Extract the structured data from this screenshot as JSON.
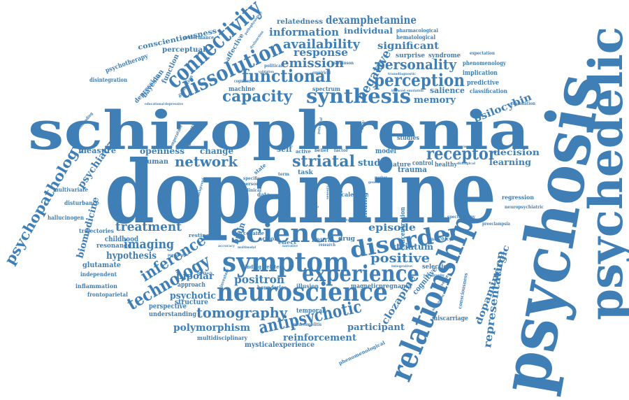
{
  "colors": {
    "primary": "#3f7fb6",
    "background": "#ffffff"
  },
  "words": [
    {
      "text": "dopamine",
      "weight": 100
    },
    {
      "text": "schizophrenia",
      "weight": 75
    },
    {
      "text": "psychosis",
      "weight": 88
    },
    {
      "text": "psychedelic",
      "weight": 60
    },
    {
      "text": "relationship",
      "weight": 42
    },
    {
      "text": "neuroscience",
      "weight": 34
    },
    {
      "text": "symptom",
      "weight": 36
    },
    {
      "text": "science",
      "weight": 32
    },
    {
      "text": "experience",
      "weight": 30
    },
    {
      "text": "disorder",
      "weight": 30
    },
    {
      "text": "connectivity",
      "weight": 30
    },
    {
      "text": "dissolution",
      "weight": 28
    },
    {
      "text": "synthesis",
      "weight": 26
    },
    {
      "text": "functional",
      "weight": 24
    },
    {
      "text": "perception",
      "weight": 24
    },
    {
      "text": "tomography",
      "weight": 22
    },
    {
      "text": "antipsychotic",
      "weight": 24
    },
    {
      "text": "technology",
      "weight": 22
    },
    {
      "text": "inference",
      "weight": 20
    },
    {
      "text": "network",
      "weight": 20
    },
    {
      "text": "striatal",
      "weight": 20
    },
    {
      "text": "receptor",
      "weight": 20
    },
    {
      "text": "capacity",
      "weight": 20
    },
    {
      "text": "personality",
      "weight": 18
    },
    {
      "text": "availability",
      "weight": 18
    },
    {
      "text": "emission",
      "weight": 18
    },
    {
      "text": "treatment",
      "weight": 18
    },
    {
      "text": "positron",
      "weight": 16
    },
    {
      "text": "positive",
      "weight": 16
    },
    {
      "text": "imaging",
      "weight": 16
    },
    {
      "text": "negative",
      "weight": 16
    },
    {
      "text": "psychopathology",
      "weight": 18
    },
    {
      "text": "dexamphetamine",
      "weight": 14
    },
    {
      "text": "information",
      "weight": 14
    },
    {
      "text": "response",
      "weight": 14
    },
    {
      "text": "significant",
      "weight": 13
    },
    {
      "text": "representation",
      "weight": 14
    },
    {
      "text": "dopaminergic",
      "weight": 13
    },
    {
      "text": "polymorphism",
      "weight": 13
    },
    {
      "text": "reinforcement",
      "weight": 12
    },
    {
      "text": "participant",
      "weight": 12
    },
    {
      "text": "psilocybin",
      "weight": 13
    },
    {
      "text": "episode",
      "weight": 13
    },
    {
      "text": "memory",
      "weight": 12
    },
    {
      "text": "psychiatry",
      "weight": 13
    },
    {
      "text": "hypothesis",
      "weight": 13
    },
    {
      "text": "biomedicine",
      "weight": 12
    },
    {
      "text": "bipolar",
      "weight": 12
    },
    {
      "text": "psychotic",
      "weight": 12
    },
    {
      "text": "openness",
      "weight": 11
    },
    {
      "text": "decision",
      "weight": 11
    },
    {
      "text": "learning",
      "weight": 11
    },
    {
      "text": "clozapine",
      "weight": 12
    },
    {
      "text": "study",
      "weight": 12
    },
    {
      "text": "striatum",
      "weight": 11
    },
    {
      "text": "salience",
      "weight": 10
    },
    {
      "text": "change",
      "weight": 11
    },
    {
      "text": "measure",
      "weight": 11
    },
    {
      "text": "individual",
      "weight": 10
    },
    {
      "text": "relatedness",
      "weight": 9
    },
    {
      "text": "conscientiousness",
      "weight": 9
    },
    {
      "text": "perceptual",
      "weight": 9
    },
    {
      "text": "function",
      "weight": 9
    },
    {
      "text": "bayesian",
      "weight": 9
    },
    {
      "text": "depression",
      "weight": 8
    },
    {
      "text": "affective",
      "weight": 8
    },
    {
      "text": "surprise",
      "weight": 8
    },
    {
      "text": "syndrome",
      "weight": 8
    },
    {
      "text": "implication",
      "weight": 8
    },
    {
      "text": "predictive",
      "weight": 8
    },
    {
      "text": "phenomenology",
      "weight": 7
    },
    {
      "text": "classification",
      "weight": 7
    },
    {
      "text": "hematological",
      "weight": 7
    },
    {
      "text": "pharmacological",
      "weight": 7
    },
    {
      "text": "machine",
      "weight": 8
    },
    {
      "text": "spectrum",
      "weight": 7
    },
    {
      "text": "glutamate",
      "weight": 9
    },
    {
      "text": "childhood",
      "weight": 9
    },
    {
      "text": "resonance",
      "weight": 8
    },
    {
      "text": "trajectories",
      "weight": 7
    },
    {
      "text": "independent",
      "weight": 7
    },
    {
      "text": "inflammation",
      "weight": 7
    },
    {
      "text": "frontoparietal",
      "weight": 7
    },
    {
      "text": "perspective",
      "weight": 9
    },
    {
      "text": "structure",
      "weight": 9
    },
    {
      "text": "understanding",
      "weight": 8
    },
    {
      "text": "approach",
      "weight": 8
    },
    {
      "text": "multidisciplinary",
      "weight": 7
    },
    {
      "text": "mysticalexperience",
      "weight": 9
    },
    {
      "text": "temporal",
      "weight": 8
    },
    {
      "text": "boundaries",
      "weight": 7
    },
    {
      "text": "illusion",
      "weight": 7
    },
    {
      "text": "magnetic",
      "weight": 8
    },
    {
      "text": "pregnancy",
      "weight": 8
    },
    {
      "text": "cognitive",
      "weight": 10
    },
    {
      "text": "trauma",
      "weight": 10
    },
    {
      "text": "selection",
      "weight": 8
    },
    {
      "text": "concentration",
      "weight": 8
    },
    {
      "text": "finding",
      "weight": 8
    },
    {
      "text": "patient",
      "weight": 8
    },
    {
      "text": "neural",
      "weight": 9
    },
    {
      "text": "drug",
      "weight": 8
    },
    {
      "text": "action",
      "weight": 7
    },
    {
      "text": "effect",
      "weight": 7
    },
    {
      "text": "cocaine",
      "weight": 7
    },
    {
      "text": "resting",
      "weight": 7
    },
    {
      "text": "brain",
      "weight": 10
    },
    {
      "text": "human",
      "weight": 9
    },
    {
      "text": "model",
      "weight": 8
    },
    {
      "text": "control",
      "weight": 8
    },
    {
      "text": "nature",
      "weight": 8
    },
    {
      "text": "healthy",
      "weight": 8
    },
    {
      "text": "task",
      "weight": 8
    },
    {
      "text": "self",
      "weight": 9
    },
    {
      "text": "active",
      "weight": 7
    },
    {
      "text": "studies",
      "weight": 8
    },
    {
      "text": "theory",
      "weight": 8
    },
    {
      "text": "cortical",
      "weight": 7
    },
    {
      "text": "empirical",
      "weight": 6
    },
    {
      "text": "parkinson",
      "weight": 6
    },
    {
      "text": "cognition",
      "weight": 6
    },
    {
      "text": "validation",
      "weight": 6
    },
    {
      "text": "political",
      "weight": 6
    },
    {
      "text": "disintegration",
      "weight": 7
    },
    {
      "text": "psychotherapy",
      "weight": 7
    },
    {
      "text": "performance",
      "weight": 6
    },
    {
      "text": "distinction",
      "weight": 6
    },
    {
      "text": "temperature",
      "weight": 6
    },
    {
      "text": "variability",
      "weight": 6
    },
    {
      "text": "mindreading",
      "weight": 6
    },
    {
      "text": "multivariate",
      "weight": 7
    },
    {
      "text": "disturbance",
      "weight": 7
    },
    {
      "text": "hallucinogen",
      "weight": 7
    },
    {
      "text": "regression",
      "weight": 7
    },
    {
      "text": "neuropsychiatric",
      "weight": 6
    },
    {
      "text": "spectroscopy",
      "weight": 6
    },
    {
      "text": "preeclampsia",
      "weight": 6
    },
    {
      "text": "ncr704cys",
      "weight": 6
    },
    {
      "text": "integrative",
      "weight": 6
    },
    {
      "text": "miscarriage",
      "weight": 8
    },
    {
      "text": "consciousness",
      "weight": 7
    },
    {
      "text": "phenomenological",
      "weight": 7
    },
    {
      "text": "neuromyelitis",
      "weight": 6
    },
    {
      "text": "research",
      "weight": 6
    },
    {
      "text": "accuracy",
      "weight": 6
    },
    {
      "text": "binding",
      "weight": 7
    },
    {
      "text": "related",
      "weight": 7
    },
    {
      "text": "narrative",
      "weight": 6
    },
    {
      "text": "inventory",
      "weight": 6
    },
    {
      "text": "multimodal",
      "weight": 6
    },
    {
      "text": "feedback",
      "weight": 6
    },
    {
      "text": "explanation",
      "weight": 6
    },
    {
      "text": "expectation",
      "weight": 6
    },
    {
      "text": "pregnancies",
      "weight": 5
    },
    {
      "text": "data",
      "weight": 7
    },
    {
      "text": "scale",
      "weight": 7
    },
    {
      "text": "life",
      "weight": 7
    },
    {
      "text": "term",
      "weight": 6
    },
    {
      "text": "person",
      "weight": 6
    },
    {
      "text": "clinical",
      "weight": 6
    },
    {
      "text": "specific",
      "weight": 6
    },
    {
      "text": "state",
      "weight": 7
    },
    {
      "text": "topography",
      "weight": 5
    },
    {
      "text": "diverse",
      "weight": 6
    },
    {
      "text": "dialogical",
      "weight": 5
    },
    {
      "text": "aberrant",
      "weight": 6
    },
    {
      "text": "factor",
      "weight": 6
    },
    {
      "text": "belief",
      "weight": 6
    },
    {
      "text": "activity",
      "weight": 5
    },
    {
      "text": "sensory",
      "weight": 5
    },
    {
      "text": "dysfunction",
      "weight": 5
    },
    {
      "text": "pathophysiology",
      "weight": 5
    },
    {
      "text": "group",
      "weight": 5
    },
    {
      "text": "potential",
      "weight": 5
    },
    {
      "text": "marker",
      "weight": 5
    },
    {
      "text": "genetic",
      "weight": 5
    },
    {
      "text": "mechanism",
      "weight": 5
    },
    {
      "text": "transdiagnostic",
      "weight": 5
    },
    {
      "text": "induced",
      "weight": 5
    },
    {
      "text": "emulation",
      "weight": 5
    },
    {
      "text": "educational",
      "weight": 5
    },
    {
      "text": "depressive",
      "weight": 5
    },
    {
      "text": "presynaptic",
      "weight": 5
    },
    {
      "text": "background",
      "weight": 5
    }
  ]
}
